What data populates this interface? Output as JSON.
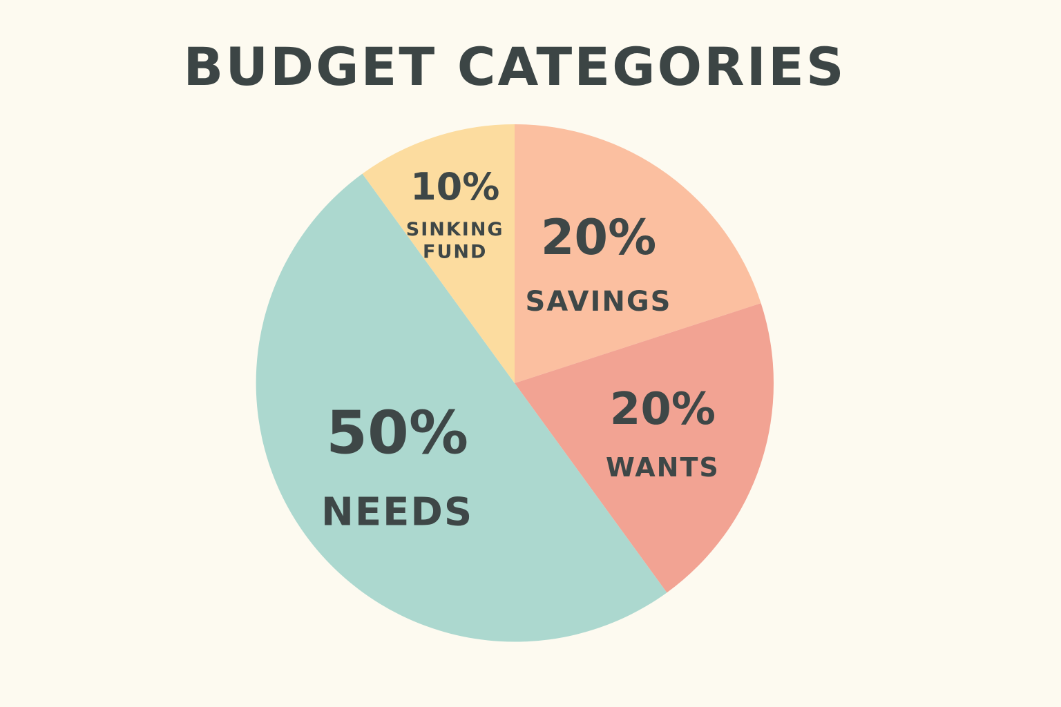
{
  "chart_data": {
    "type": "pie",
    "title": "BUDGET CATEGORIES",
    "slices": [
      {
        "value": 20,
        "percent_label": "20%",
        "label": "SAVINGS",
        "color": "#fbbfa0"
      },
      {
        "value": 20,
        "percent_label": "20%",
        "label": "WANTS",
        "color": "#f2a393"
      },
      {
        "value": 50,
        "percent_label": "50%",
        "label": "NEEDS",
        "color": "#acd8cf"
      },
      {
        "value": 10,
        "percent_label": "10%",
        "label": "SINKING FUND",
        "label_lines": [
          "SINKING",
          "FUND"
        ],
        "color": "#fcdc9f"
      }
    ],
    "start": "12 o'clock",
    "direction": "clockwise"
  },
  "background": "#fdfaf0",
  "text_color": "#3e4747"
}
